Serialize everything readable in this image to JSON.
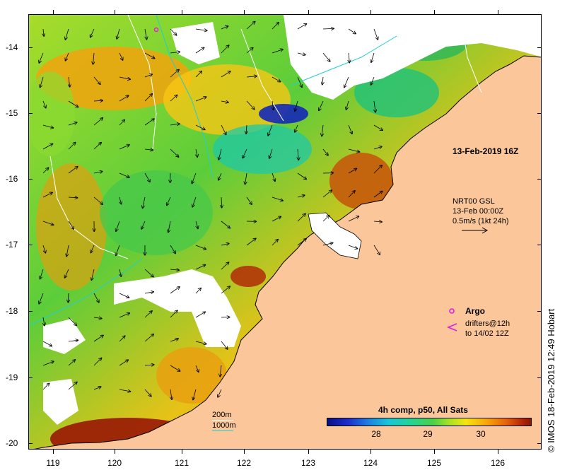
{
  "map": {
    "timestamp_label": "13-Feb-2019 16Z",
    "y_axis_labels": [
      "-14",
      "-15",
      "-16",
      "-17",
      "-18",
      "-19",
      "-20"
    ],
    "x_axis_labels": [
      "119",
      "120",
      "121",
      "122",
      "123",
      "124",
      "125",
      "126"
    ],
    "current_legend": {
      "line1": "NRT00 GSL",
      "line2": "13-Feb 00:00Z",
      "line3": "0.5m/s (1kt 24h)"
    },
    "argo_label": "Argo",
    "drifters_line1": "drifters@12h",
    "drifters_line2": "to 14/02 12Z",
    "depth_200m": "200m",
    "depth_1000m": "1000m",
    "colorbar": {
      "title": "4h comp, p50, All Sats",
      "ticks": [
        "28",
        "29",
        "30"
      ]
    },
    "credit": "© IMOS 18-Feb-2019 12:49 Hobart",
    "colors": {
      "land": "#fbc69a",
      "argo": "#e21ee0",
      "shelf_contour": "#1fd0d0"
    }
  }
}
